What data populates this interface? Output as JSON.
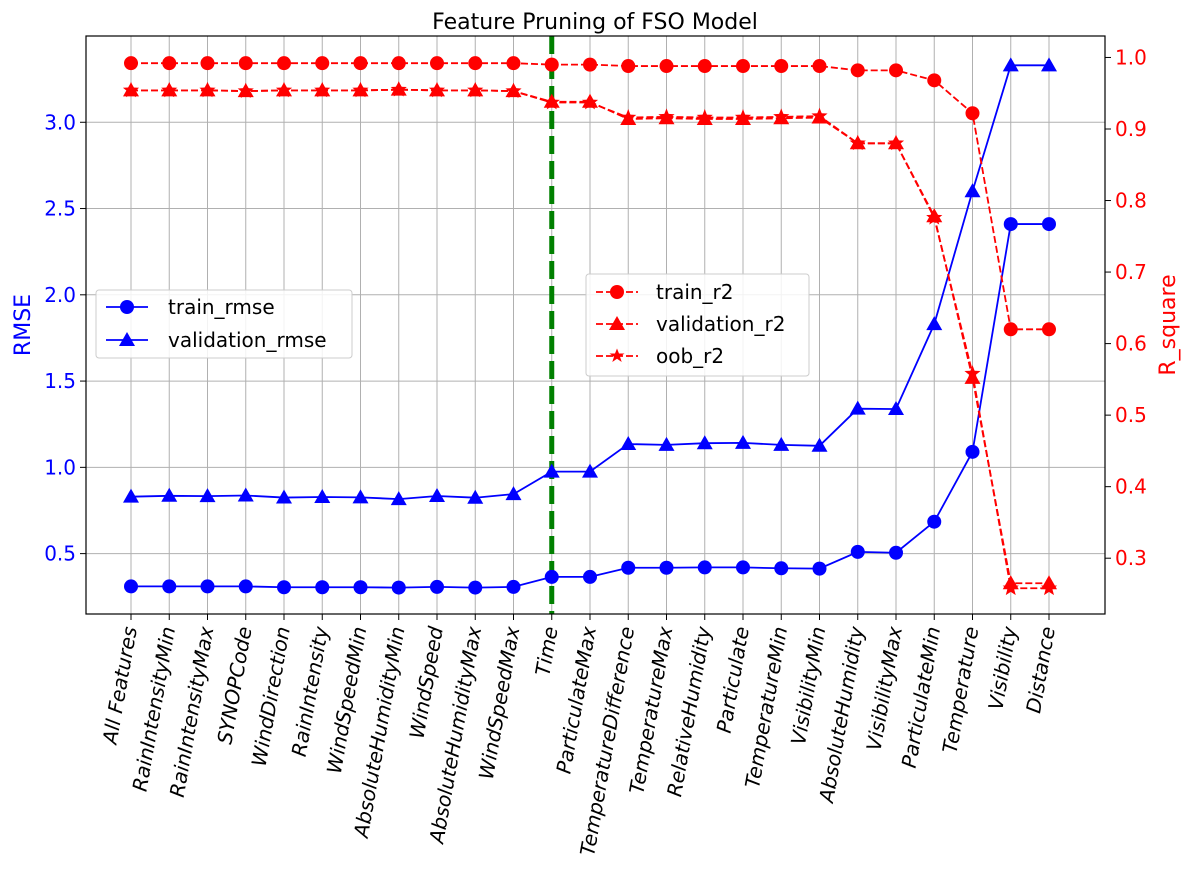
{
  "chart_data": {
    "type": "line",
    "title": "Feature Pruning of FSO Model",
    "ylabel_left": "RMSE",
    "ylabel_right": "R_square",
    "categories": [
      "All Features",
      "RainIntensityMin",
      "RainIntensityMax",
      "SYNOPCode",
      "WindDirection",
      "RainIntensity",
      "WindSpeedMin",
      "AbsoluteHumidityMin",
      "WindSpeed",
      "AbsoluteHumidityMax",
      "WindSpeedMax",
      "Time",
      "ParticulateMax",
      "TemperatureDifference",
      "TemperatureMax",
      "RelativeHumidity",
      "Particulate",
      "TemperatureMin",
      "VisibilityMin",
      "AbsoluteHumidity",
      "VisibilityMax",
      "ParticulateMin",
      "Temperature",
      "Visibility",
      "Distance"
    ],
    "ylim_left": [
      0.15,
      3.5
    ],
    "ylim_right": [
      0.222,
      1.03
    ],
    "yticks_left": [
      0.5,
      1.0,
      1.5,
      2.0,
      2.5,
      3.0
    ],
    "ytick_labels_left": [
      "0.5",
      "1.0",
      "1.5",
      "2.0",
      "2.5",
      "3.0"
    ],
    "yticks_right": [
      0.3,
      0.4,
      0.5,
      0.6,
      0.7,
      0.8,
      0.9,
      1.0
    ],
    "ytick_labels_right": [
      "0.3",
      "0.4",
      "0.5",
      "0.6",
      "0.7",
      "0.8",
      "0.9",
      "1.0"
    ],
    "grid": true,
    "vline": {
      "category": "Time",
      "color": "#008000",
      "style": "dashed"
    },
    "series_left": [
      {
        "name": "train_rmse",
        "marker": "circle",
        "dash": false,
        "values": [
          0.31,
          0.31,
          0.31,
          0.31,
          0.305,
          0.305,
          0.305,
          0.303,
          0.307,
          0.303,
          0.307,
          0.365,
          0.365,
          0.418,
          0.418,
          0.42,
          0.42,
          0.415,
          0.413,
          0.51,
          0.505,
          0.685,
          1.09,
          2.41,
          2.41
        ]
      },
      {
        "name": "validation_rmse",
        "marker": "triangle",
        "dash": false,
        "values": [
          0.83,
          0.835,
          0.833,
          0.837,
          0.825,
          0.828,
          0.826,
          0.816,
          0.834,
          0.824,
          0.845,
          0.975,
          0.975,
          1.135,
          1.13,
          1.14,
          1.142,
          1.13,
          1.125,
          1.34,
          1.338,
          1.83,
          2.6,
          3.33,
          3.33
        ]
      }
    ],
    "series_right": [
      {
        "name": "train_r2",
        "marker": "circle",
        "dash": true,
        "values": [
          0.992,
          0.992,
          0.992,
          0.992,
          0.992,
          0.992,
          0.992,
          0.992,
          0.992,
          0.992,
          0.992,
          0.99,
          0.99,
          0.988,
          0.988,
          0.988,
          0.988,
          0.988,
          0.988,
          0.982,
          0.982,
          0.968,
          0.922,
          0.62,
          0.62
        ]
      },
      {
        "name": "validation_r2",
        "marker": "triangle",
        "dash": true,
        "values": [
          0.954,
          0.954,
          0.954,
          0.953,
          0.954,
          0.954,
          0.954,
          0.955,
          0.954,
          0.954,
          0.953,
          0.938,
          0.938,
          0.914,
          0.915,
          0.914,
          0.914,
          0.915,
          0.916,
          0.88,
          0.88,
          0.778,
          0.552,
          0.265,
          0.265
        ]
      },
      {
        "name": "oob_r2",
        "marker": "star",
        "dash": true,
        "values": [
          0.954,
          0.954,
          0.954,
          0.953,
          0.954,
          0.954,
          0.954,
          0.955,
          0.954,
          0.954,
          0.953,
          0.937,
          0.937,
          0.916,
          0.917,
          0.916,
          0.916,
          0.917,
          0.918,
          0.88,
          0.88,
          0.776,
          0.558,
          0.258,
          0.258
        ]
      }
    ],
    "legend_left_position": "center-left",
    "legend_right_position": "center"
  },
  "colors": {
    "left_axis": "#0000ff",
    "right_axis": "#ff0000",
    "vline": "#008000",
    "grid": "#b0b0b0"
  }
}
